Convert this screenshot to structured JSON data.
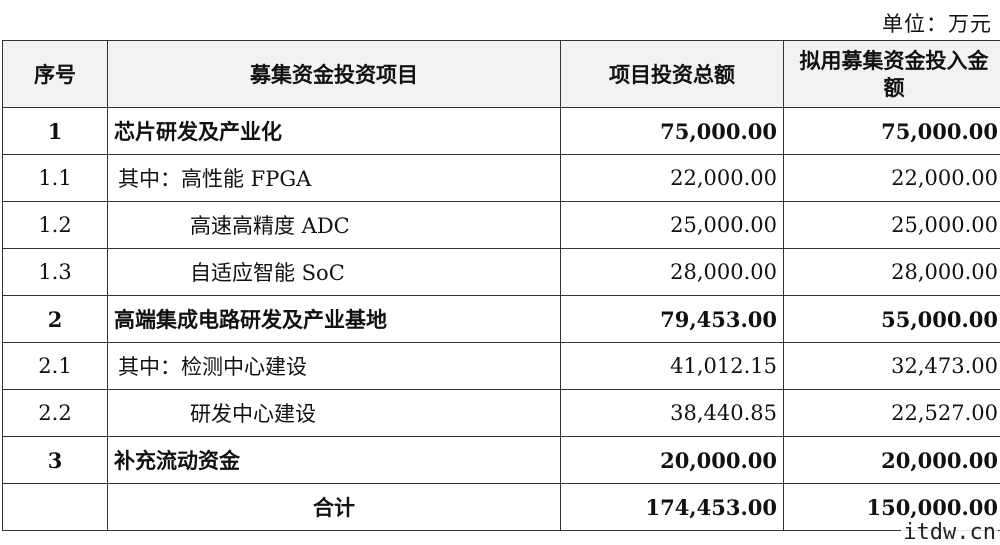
{
  "unit_label": "单位：万元",
  "headers": {
    "index": "序号",
    "project": "募集资金投资项目",
    "total": "项目投资总额",
    "raise": "拟用募集资金投入金额"
  },
  "rows": [
    {
      "index": "1",
      "name": "芯片研发及产业化",
      "total": "75,000.00",
      "raise": "75,000.00",
      "bold": true,
      "indent": 0
    },
    {
      "index": "1.1",
      "name": "其中：高性能 FPGA",
      "total": "22,000.00",
      "raise": "22,000.00",
      "bold": false,
      "indent": 1
    },
    {
      "index": "1.2",
      "name": "高速高精度 ADC",
      "total": "25,000.00",
      "raise": "25,000.00",
      "bold": false,
      "indent": 2
    },
    {
      "index": "1.3",
      "name": "自适应智能 SoC",
      "total": "28,000.00",
      "raise": "28,000.00",
      "bold": false,
      "indent": 2
    },
    {
      "index": "2",
      "name": "高端集成电路研发及产业基地",
      "total": "79,453.00",
      "raise": "55,000.00",
      "bold": true,
      "indent": 0
    },
    {
      "index": "2.1",
      "name": "其中：检测中心建设",
      "total": "41,012.15",
      "raise": "32,473.00",
      "bold": false,
      "indent": 1
    },
    {
      "index": "2.2",
      "name": "研发中心建设",
      "total": "38,440.85",
      "raise": "22,527.00",
      "bold": false,
      "indent": 2
    },
    {
      "index": "3",
      "name": "补充流动资金",
      "total": "20,000.00",
      "raise": "20,000.00",
      "bold": true,
      "indent": 0
    }
  ],
  "total_row": {
    "label": "合计",
    "total": "174,453.00",
    "raise": "150,000.00"
  },
  "watermark": "itdw.cn"
}
